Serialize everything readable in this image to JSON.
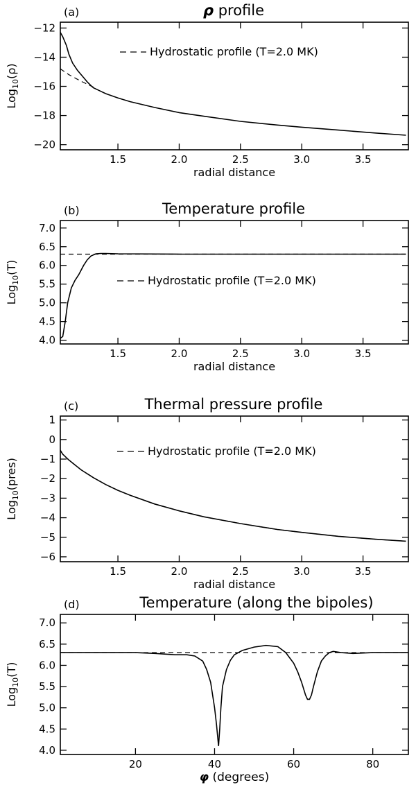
{
  "chart_data": [
    {
      "type": "line",
      "panel_label": "(a)",
      "title_symbol": "ρ",
      "title": "profile",
      "ylabel_prefix": "Log",
      "ylabel_sub": "10",
      "ylabel_var": "(ρ)",
      "xlabel": "radial distance",
      "xlim": [
        1.03,
        3.87
      ],
      "ylim": [
        -20.35,
        -11.6
      ],
      "xticks": [
        1.5,
        2.0,
        2.5,
        3.0,
        3.5
      ],
      "xtick_labels": [
        "1.5",
        "2.0",
        "2.5",
        "3.0",
        "3.5"
      ],
      "yticks": [
        -12,
        -14,
        -16,
        -18,
        -20
      ],
      "ytick_labels": [
        "−12",
        "−14",
        "−16",
        "−18",
        "−20"
      ],
      "legend": "Hydrostatic profile (T=2.0 MK)",
      "legend_position": "top-right",
      "series": [
        {
          "style": "solid",
          "x": [
            1.03,
            1.05,
            1.08,
            1.1,
            1.13,
            1.17,
            1.22,
            1.25,
            1.28,
            1.3,
            1.35,
            1.4,
            1.5,
            1.6,
            1.8,
            2.0,
            2.2,
            2.5,
            2.8,
            3.0,
            3.3,
            3.6,
            3.85
          ],
          "y": [
            -12.3,
            -12.6,
            -13.2,
            -13.8,
            -14.4,
            -14.9,
            -15.4,
            -15.7,
            -15.95,
            -16.1,
            -16.3,
            -16.5,
            -16.8,
            -17.05,
            -17.45,
            -17.8,
            -18.05,
            -18.4,
            -18.65,
            -18.8,
            -19.0,
            -19.2,
            -19.35
          ]
        },
        {
          "style": "dashed",
          "x": [
            1.03,
            1.1,
            1.2,
            1.3
          ],
          "y": [
            -14.8,
            -15.2,
            -15.65,
            -16.05
          ]
        }
      ]
    },
    {
      "type": "line",
      "panel_label": "(b)",
      "title": "Temperature profile",
      "ylabel_prefix": "Log",
      "ylabel_sub": "10",
      "ylabel_var": "(T)",
      "xlabel": "radial distance",
      "xlim": [
        1.03,
        3.87
      ],
      "ylim": [
        3.9,
        7.2
      ],
      "xticks": [
        1.5,
        2.0,
        2.5,
        3.0,
        3.5
      ],
      "xtick_labels": [
        "1.5",
        "2.0",
        "2.5",
        "3.0",
        "3.5"
      ],
      "yticks": [
        4.0,
        4.5,
        5.0,
        5.5,
        6.0,
        6.5,
        7.0
      ],
      "ytick_labels": [
        "4.0",
        "4.5",
        "5.0",
        "5.5",
        "6.0",
        "6.5",
        "7.0"
      ],
      "legend": "Hydrostatic profile (T=2.0 MK)",
      "legend_position": "middle",
      "series": [
        {
          "style": "solid",
          "x": [
            1.03,
            1.05,
            1.07,
            1.09,
            1.12,
            1.15,
            1.18,
            1.22,
            1.25,
            1.28,
            1.32,
            1.36,
            1.4,
            1.5,
            2.0,
            3.0,
            3.85
          ],
          "y": [
            4.05,
            4.1,
            4.5,
            5.0,
            5.4,
            5.6,
            5.75,
            6.0,
            6.15,
            6.25,
            6.31,
            6.32,
            6.32,
            6.31,
            6.3,
            6.3,
            6.3
          ]
        },
        {
          "style": "dashed",
          "x": [
            1.03,
            3.85
          ],
          "y": [
            6.3,
            6.3
          ]
        }
      ]
    },
    {
      "type": "line",
      "panel_label": "(c)",
      "title": "Thermal pressure profile",
      "ylabel_prefix": "Log",
      "ylabel_sub": "10",
      "ylabel_var": "(pres)",
      "xlabel": "radial distance",
      "xlim": [
        1.03,
        3.87
      ],
      "ylim": [
        -6.25,
        1.2
      ],
      "xticks": [
        1.5,
        2.0,
        2.5,
        3.0,
        3.5
      ],
      "xtick_labels": [
        "1.5",
        "2.0",
        "2.5",
        "3.0",
        "3.5"
      ],
      "yticks": [
        1,
        0,
        -1,
        -2,
        -3,
        -4,
        -5,
        -6
      ],
      "ytick_labels": [
        "1",
        "0",
        "−1",
        "−2",
        "−3",
        "−4",
        "−5",
        "−6"
      ],
      "legend": "Hydrostatic profile (T=2.0 MK)",
      "legend_position": "top-right",
      "series": [
        {
          "style": "solid",
          "x": [
            1.03,
            1.05,
            1.1,
            1.15,
            1.2,
            1.3,
            1.4,
            1.5,
            1.6,
            1.8,
            2.0,
            2.2,
            2.5,
            2.8,
            3.0,
            3.3,
            3.6,
            3.85
          ],
          "y": [
            -0.55,
            -0.75,
            -1.05,
            -1.3,
            -1.55,
            -1.95,
            -2.3,
            -2.6,
            -2.85,
            -3.3,
            -3.65,
            -3.95,
            -4.3,
            -4.6,
            -4.75,
            -4.95,
            -5.1,
            -5.2
          ]
        },
        {
          "style": "dashed",
          "x": [
            1.03,
            1.05,
            1.1,
            1.15,
            1.2,
            1.3,
            1.4,
            1.5,
            1.6,
            1.8,
            2.0,
            2.2,
            2.5,
            2.8,
            3.0,
            3.3,
            3.6,
            3.85
          ],
          "y": [
            -0.55,
            -0.75,
            -1.05,
            -1.3,
            -1.55,
            -1.95,
            -2.3,
            -2.6,
            -2.85,
            -3.3,
            -3.65,
            -3.95,
            -4.3,
            -4.6,
            -4.75,
            -4.95,
            -5.1,
            -5.2
          ]
        }
      ]
    },
    {
      "type": "line",
      "panel_label": "(d)",
      "title": "Temperature (along the bipoles)",
      "ylabel_prefix": "Log",
      "ylabel_sub": "10",
      "ylabel_var": "(T)",
      "xlabel_symbol": "φ",
      "xlabel": "(degrees)",
      "xlim": [
        1,
        89
      ],
      "ylim": [
        3.9,
        7.2
      ],
      "xticks": [
        20,
        40,
        60,
        80
      ],
      "xtick_labels": [
        "20",
        "40",
        "60",
        "80"
      ],
      "yticks": [
        4.0,
        4.5,
        5.0,
        5.5,
        6.0,
        6.5,
        7.0
      ],
      "ytick_labels": [
        "4.0",
        "4.5",
        "5.0",
        "5.5",
        "6.0",
        "6.5",
        "7.0"
      ],
      "legend_position": "none",
      "series": [
        {
          "style": "solid",
          "x": [
            1,
            10,
            20,
            25,
            30,
            33,
            35,
            37,
            38,
            39,
            40,
            40.5,
            41,
            41.3,
            41.6,
            42,
            43,
            44,
            45,
            47,
            50,
            53,
            56,
            58,
            60,
            61,
            62,
            63,
            63.5,
            64,
            64.5,
            65,
            66,
            67,
            68,
            69,
            70,
            72,
            75,
            80,
            85,
            89
          ],
          "y": [
            6.3,
            6.3,
            6.3,
            6.28,
            6.25,
            6.25,
            6.22,
            6.1,
            5.9,
            5.6,
            5.0,
            4.6,
            4.1,
            4.5,
            5.0,
            5.5,
            5.9,
            6.12,
            6.25,
            6.35,
            6.43,
            6.47,
            6.44,
            6.3,
            6.05,
            5.85,
            5.6,
            5.3,
            5.2,
            5.2,
            5.3,
            5.5,
            5.85,
            6.1,
            6.22,
            6.3,
            6.33,
            6.3,
            6.28,
            6.3,
            6.3,
            6.3
          ]
        },
        {
          "style": "dashed",
          "x": [
            1,
            89
          ],
          "y": [
            6.3,
            6.3
          ]
        }
      ]
    }
  ]
}
